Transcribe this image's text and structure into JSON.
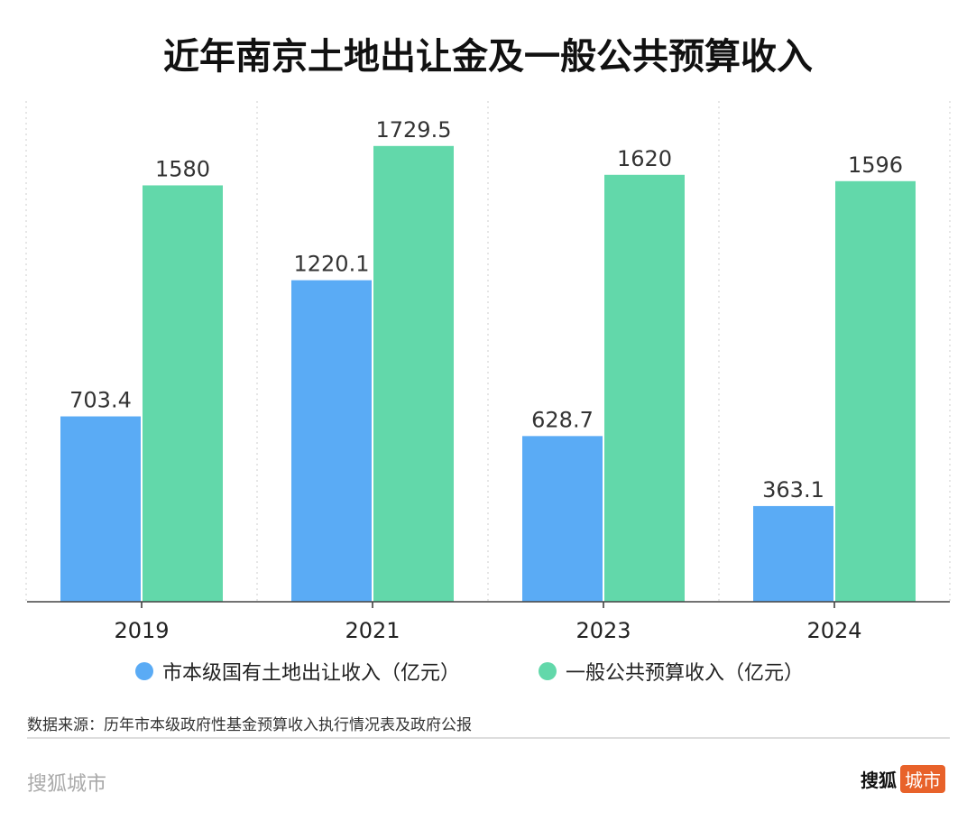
{
  "title": "近年南京土地出让金及一般公共预算收入",
  "chart_data": {
    "type": "bar",
    "title": "近年南京土地出让金及一般公共预算收入",
    "categories": [
      "2019",
      "2021",
      "2023",
      "2024"
    ],
    "series": [
      {
        "name": "市本级国有土地出让收入（亿元）",
        "color": "#5aabf5",
        "values": [
          703.4,
          1220.1,
          628.7,
          363.1
        ],
        "labels": [
          "703.4",
          "1220.1",
          "628.7",
          "363.1"
        ]
      },
      {
        "name": "一般公共预算收入（亿元）",
        "color": "#62d8aa",
        "values": [
          1580,
          1729.5,
          1620,
          1596
        ],
        "labels": [
          "1580",
          "1729.5",
          "1620",
          "1596"
        ]
      }
    ],
    "xlabel": "",
    "ylabel": "",
    "ylim": [
      0,
      1900
    ],
    "grid": "vertical dotted separators",
    "legend": "bottom-center"
  },
  "source": "数据来源：历年市本级政府性基金预算收入执行情况表及政府公报",
  "footer": {
    "brand": "搜狐城市",
    "logo_main": "搜狐",
    "logo_tag": "城市"
  }
}
